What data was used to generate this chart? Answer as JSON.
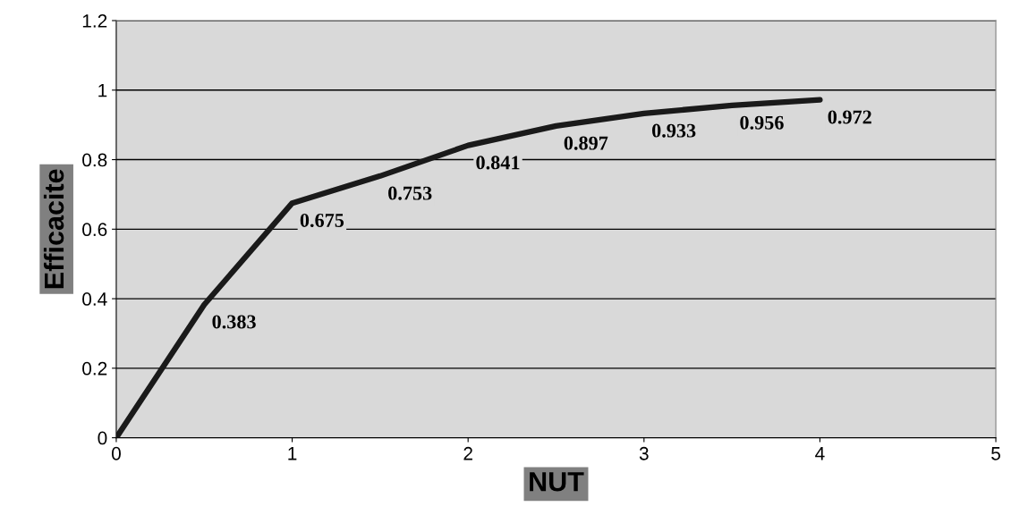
{
  "chart_data": {
    "type": "line",
    "xlabel": "NUT",
    "ylabel": "Efficacite",
    "x": [
      0,
      0.5,
      1,
      1.5,
      2,
      2.5,
      3,
      3.5,
      4
    ],
    "series": [
      {
        "color": "#1a1a1a",
        "values": [
          0,
          0.383,
          0.675,
          0.753,
          0.841,
          0.897,
          0.933,
          0.956,
          0.972
        ],
        "value_labels": [
          null,
          "0.383",
          "0.675",
          "0.753",
          "0.841",
          "0.897",
          "0.933",
          "0.956",
          "0.972"
        ]
      }
    ],
    "xlim": [
      0,
      5
    ],
    "xticks": [
      0,
      1,
      2,
      3,
      4,
      5
    ],
    "ylim": [
      0,
      1.2
    ],
    "yticks": [
      0,
      {
        "value": 0.2,
        "label": "0.2"
      },
      {
        "value": 0.4,
        "label": "0.4"
      },
      {
        "value": 0.6,
        "label": "0.6"
      },
      {
        "value": 0.8,
        "label": "0.8"
      },
      1,
      {
        "value": 1.2,
        "label": "1.2"
      }
    ],
    "grid": "y",
    "marker": "none",
    "line_style": "solid",
    "legend": false
  }
}
